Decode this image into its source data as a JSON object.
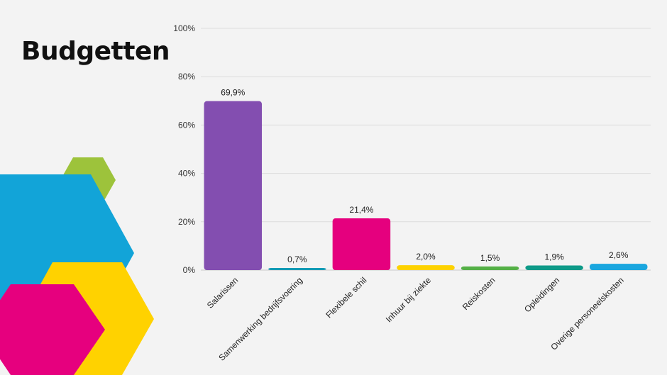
{
  "slide": {
    "title": "Budgetten"
  },
  "decor": {
    "hex_colors": [
      "#9dc33b",
      "#12a4d8",
      "#ffd200",
      "#e6007e"
    ]
  },
  "chart_data": {
    "type": "bar",
    "categories": [
      "Salarissen",
      "Samenwerking bedrijfsvoering",
      "Flexibele schil",
      "Inhuur bij ziekte",
      "Reiskosten",
      "Opleidingen",
      "Overige personeelskosten"
    ],
    "values": [
      69.9,
      0.7,
      21.4,
      2.0,
      1.5,
      1.9,
      2.6
    ],
    "data_labels": [
      "69,9%",
      "0,7%",
      "21,4%",
      "2,0%",
      "1,5%",
      "1,9%",
      "2,6%"
    ],
    "colors": [
      "#834eb0",
      "#149bb5",
      "#e5007e",
      "#fdd200",
      "#54b046",
      "#0e9a88",
      "#1aa6df"
    ],
    "ylim": [
      0,
      100
    ],
    "yticks": [
      0,
      20,
      40,
      60,
      80,
      100
    ],
    "ytick_labels": [
      "0%",
      "20%",
      "40%",
      "60%",
      "80%",
      "100%"
    ],
    "grid": true,
    "legend": "none"
  }
}
